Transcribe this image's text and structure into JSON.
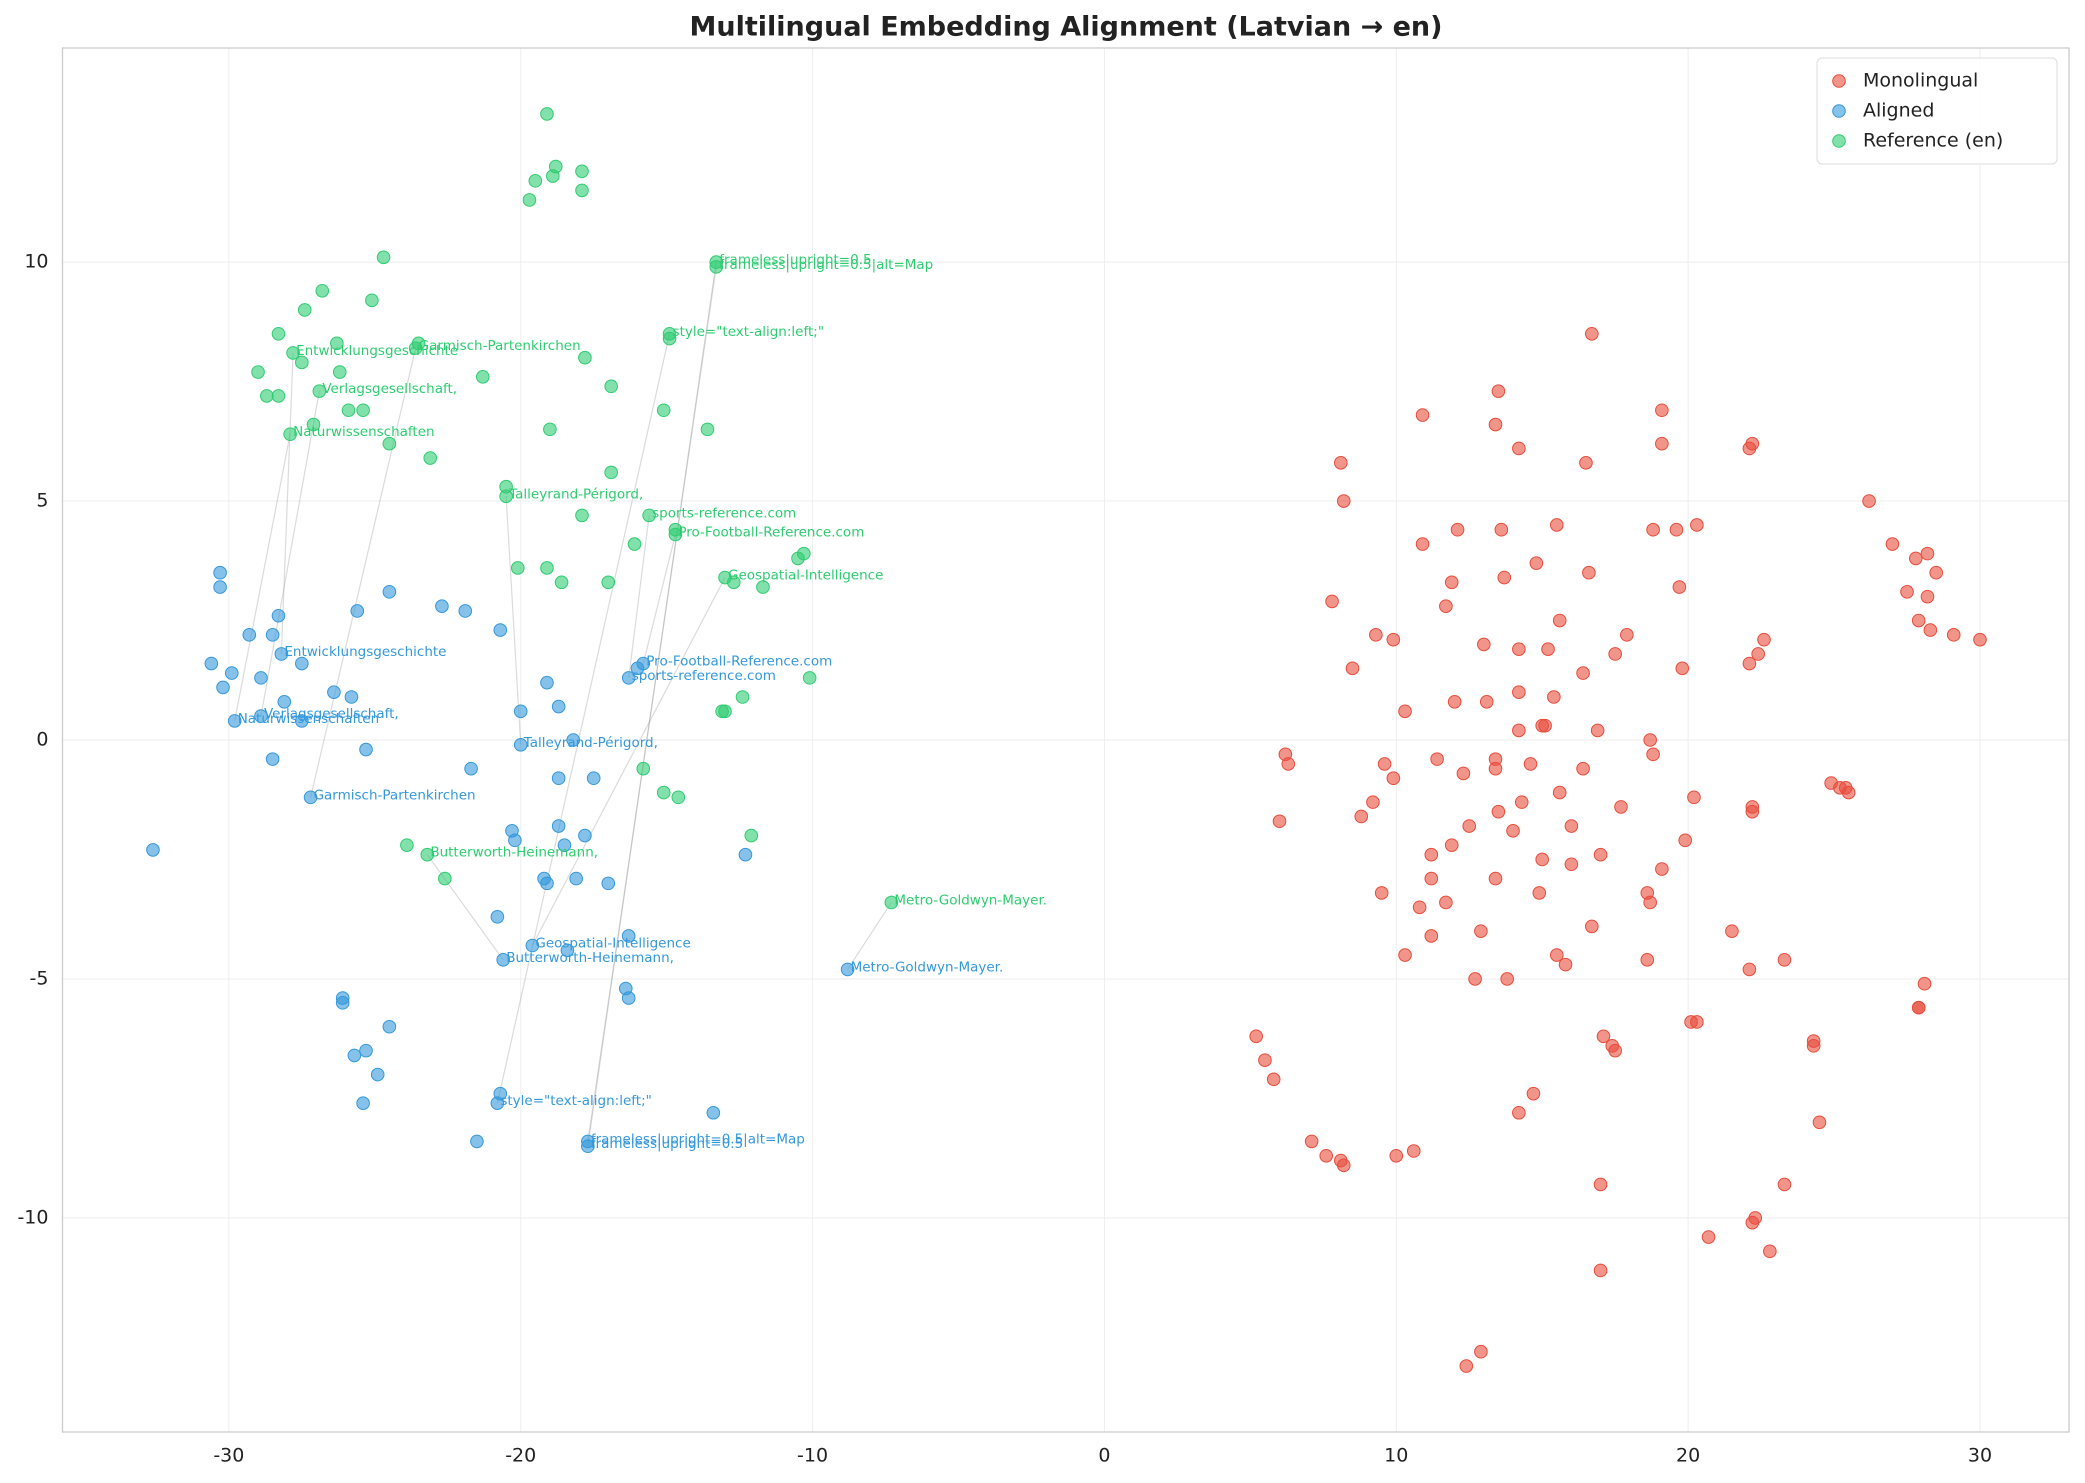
{
  "chart_data": {
    "type": "scatter",
    "title": "Multilingual Embedding Alignment (Latvian → en)",
    "xlim": [
      -35.7,
      33.05
    ],
    "ylim": [
      -14.48,
      14.48
    ],
    "xticks": [
      -30,
      -20,
      -10,
      0,
      10,
      20,
      30
    ],
    "yticks": [
      -10,
      -5,
      0,
      5,
      10
    ],
    "grid": true,
    "legend": "upper right",
    "series": [
      {
        "name": "Monolingual",
        "color": "#e74c3c",
        "x": [
          16.7,
          13.5,
          19.1,
          10.9,
          13.4,
          14.2,
          19.1,
          22.2,
          22.1,
          8.1,
          16.5,
          8.2,
          26.2,
          10.9,
          12.1,
          13.6,
          15.5,
          18.8,
          19.6,
          20.3,
          27.0,
          27.8,
          28.2,
          28.5,
          14.8,
          16.6,
          11.9,
          13.7,
          19.7,
          27.5,
          28.2,
          7.8,
          11.7,
          15.6,
          9.3,
          9.9,
          17.9,
          22.6,
          27.9,
          28.3,
          29.1,
          30.0,
          13.0,
          14.2,
          15.2,
          17.5,
          22.4,
          22.1,
          19.8,
          8.5,
          16.4,
          12.0,
          13.1,
          14.2,
          15.4,
          10.3,
          15.0,
          15.1,
          14.2,
          16.9,
          18.7,
          18.8,
          6.2,
          6.3,
          9.6,
          11.4,
          13.4,
          14.6,
          16.4,
          9.9,
          12.3,
          13.4,
          24.9,
          25.2,
          25.4,
          25.5,
          15.6,
          14.3,
          9.2,
          20.2,
          22.2,
          22.2,
          17.7,
          6.0,
          13.5,
          8.8,
          16.0,
          12.5,
          14.0,
          19.9,
          11.9,
          11.2,
          17.0,
          15.0,
          16.0,
          19.1,
          11.2,
          13.4,
          9.5,
          14.9,
          18.6,
          18.7,
          10.8,
          11.7,
          12.9,
          16.7,
          11.2,
          21.5,
          10.3,
          15.5,
          15.8,
          18.6,
          22.1,
          23.3,
          12.7,
          13.8,
          28.1,
          27.9,
          27.9,
          20.1,
          20.3,
          5.2,
          17.1,
          17.4,
          17.5,
          24.3,
          24.3,
          5.5,
          5.8,
          14.7,
          14.2,
          24.5,
          7.1,
          7.6,
          8.1,
          8.2,
          10.0,
          10.6,
          17.0,
          23.3,
          22.3,
          22.2,
          20.7,
          22.8,
          17.0,
          12.9,
          12.4
        ],
        "values": [
          8.5,
          7.3,
          6.9,
          6.8,
          6.6,
          6.1,
          6.2,
          6.2,
          6.1,
          5.8,
          5.8,
          5.0,
          5.0,
          4.1,
          4.4,
          4.4,
          4.5,
          4.4,
          4.4,
          4.5,
          4.1,
          3.8,
          3.9,
          3.5,
          3.7,
          3.5,
          3.3,
          3.4,
          3.2,
          3.1,
          3.0,
          2.9,
          2.8,
          2.5,
          2.2,
          2.1,
          2.2,
          2.1,
          2.5,
          2.3,
          2.2,
          2.1,
          2.0,
          1.9,
          1.9,
          1.8,
          1.8,
          1.6,
          1.5,
          1.5,
          1.4,
          0.8,
          0.8,
          1.0,
          0.9,
          0.6,
          0.3,
          0.3,
          0.2,
          0.2,
          0.0,
          -0.3,
          -0.3,
          -0.5,
          -0.5,
          -0.4,
          -0.4,
          -0.5,
          -0.6,
          -0.8,
          -0.7,
          -0.6,
          -0.9,
          -1.0,
          -1.0,
          -1.1,
          -1.1,
          -1.3,
          -1.3,
          -1.2,
          -1.4,
          -1.5,
          -1.4,
          -1.7,
          -1.5,
          -1.6,
          -1.8,
          -1.8,
          -1.9,
          -2.1,
          -2.2,
          -2.4,
          -2.4,
          -2.5,
          -2.6,
          -2.7,
          -2.9,
          -2.9,
          -3.2,
          -3.2,
          -3.2,
          -3.4,
          -3.5,
          -3.4,
          -4.0,
          -3.9,
          -4.1,
          -4.0,
          -4.5,
          -4.5,
          -4.7,
          -4.6,
          -4.8,
          -4.6,
          -5.0,
          -5.0,
          -5.1,
          -5.6,
          -5.6,
          -5.9,
          -5.9,
          -6.2,
          -6.2,
          -6.4,
          -6.5,
          -6.3,
          -6.4,
          -6.7,
          -7.1,
          -7.4,
          -7.8,
          -8.0,
          -8.4,
          -8.7,
          -8.8,
          -8.9,
          -8.7,
          -8.6,
          -9.3,
          -9.3,
          -10.0,
          -10.1,
          -10.4,
          -10.7,
          -11.1,
          -12.8,
          -13.1
        ]
      },
      {
        "name": "Aligned",
        "color": "#3498db",
        "x": [
          -30.3,
          -30.3,
          -24.5,
          -25.6,
          -22.7,
          -21.9,
          -28.3,
          -29.3,
          -28.5,
          -20.7,
          -28.2,
          -30.6,
          -27.5,
          -29.9,
          -28.9,
          -30.2,
          -19.1,
          -15.8,
          -16.0,
          -16.3,
          -26.4,
          -25.8,
          -28.1,
          -18.7,
          -20.0,
          -28.9,
          -27.5,
          -29.8,
          -20.0,
          -18.2,
          -25.3,
          -28.5,
          -21.7,
          -17.5,
          -18.7,
          -27.2,
          -20.3,
          -18.7,
          -20.2,
          -17.8,
          -18.5,
          -32.6,
          -12.3,
          -19.2,
          -19.1,
          -18.1,
          -17.0,
          -20.8,
          -16.3,
          -18.4,
          -19.6,
          -20.6,
          -8.8,
          -16.4,
          -16.3,
          -26.1,
          -26.1,
          -24.5,
          -25.3,
          -25.7,
          -24.9,
          -20.7,
          -20.8,
          -25.4,
          -13.4,
          -21.5,
          -17.7,
          -17.7
        ],
        "values": [
          3.5,
          3.2,
          3.1,
          2.7,
          2.8,
          2.7,
          2.6,
          2.2,
          2.2,
          2.3,
          1.8,
          1.6,
          1.6,
          1.4,
          1.3,
          1.1,
          1.2,
          1.6,
          1.5,
          1.3,
          1.0,
          0.9,
          0.8,
          0.7,
          0.6,
          0.5,
          0.4,
          0.4,
          -0.1,
          0.0,
          -0.2,
          -0.4,
          -0.6,
          -0.8,
          -0.8,
          -1.2,
          -1.9,
          -1.8,
          -2.1,
          -2.0,
          -2.2,
          -2.3,
          -2.4,
          -2.9,
          -3.0,
          -2.9,
          -3.0,
          -3.7,
          -4.1,
          -4.4,
          -4.3,
          -4.6,
          -4.8,
          -5.2,
          -5.4,
          -5.4,
          -5.5,
          -6.0,
          -6.5,
          -6.6,
          -7.0,
          -7.4,
          -7.6,
          -7.6,
          -7.8,
          -8.4,
          -8.4,
          -8.5
        ]
      },
      {
        "name": "Reference (en)",
        "color": "#2ecc71",
        "x": [
          -19.1,
          -18.8,
          -17.9,
          -19.5,
          -18.9,
          -17.9,
          -19.7,
          -24.7,
          -13.3,
          -13.3,
          -26.8,
          -25.1,
          -27.4,
          -28.3,
          -14.9,
          -14.9,
          -26.3,
          -23.5,
          -23.6,
          -17.8,
          -27.8,
          -27.5,
          -29.0,
          -26.2,
          -21.3,
          -16.9,
          -26.9,
          -28.3,
          -28.7,
          -25.9,
          -25.4,
          -15.1,
          -27.1,
          -19.0,
          -13.6,
          -27.9,
          -24.5,
          -23.1,
          -16.9,
          -20.5,
          -20.5,
          -17.9,
          -15.6,
          -14.7,
          -14.7,
          -16.1,
          -10.3,
          -10.5,
          -20.1,
          -19.1,
          -13.0,
          -12.7,
          -11.7,
          -18.6,
          -17.0,
          -10.1,
          -12.4,
          -13.0,
          -13.1,
          -15.8,
          -15.1,
          -14.6,
          -12.1,
          -23.9,
          -23.2,
          -22.6,
          -7.3
        ],
        "values": [
          13.1,
          12.0,
          11.9,
          11.7,
          11.8,
          11.5,
          11.3,
          10.1,
          10.0,
          9.9,
          9.4,
          9.2,
          9.0,
          8.5,
          8.5,
          8.4,
          8.3,
          8.3,
          8.2,
          8.0,
          8.1,
          7.9,
          7.7,
          7.7,
          7.6,
          7.4,
          7.3,
          7.2,
          7.2,
          6.9,
          6.9,
          6.9,
          6.6,
          6.5,
          6.5,
          6.4,
          6.2,
          5.9,
          5.6,
          5.3,
          5.1,
          4.7,
          4.7,
          4.4,
          4.3,
          4.1,
          3.9,
          3.8,
          3.6,
          3.6,
          3.4,
          3.3,
          3.2,
          3.3,
          3.3,
          1.3,
          0.9,
          0.6,
          0.6,
          -0.6,
          -1.1,
          -1.2,
          -2.0,
          -2.2,
          -2.4,
          -2.9,
          -3.4
        ]
      }
    ],
    "annotations": [
      {
        "text": "frameless|upright=0.5",
        "aligned": [
          -17.7,
          -8.5
        ],
        "reference": [
          -13.3,
          10.0
        ]
      },
      {
        "text": "frameless|upright=0.5|alt=Map",
        "aligned": [
          -17.7,
          -8.4
        ],
        "reference": [
          -13.3,
          9.9
        ]
      },
      {
        "text": "style=\"text-align:left;\"",
        "aligned": [
          -20.8,
          -7.6
        ],
        "reference": [
          -14.9,
          8.5
        ]
      },
      {
        "text": "Garmisch-Partenkirchen",
        "aligned": [
          -27.2,
          -1.2
        ],
        "reference": [
          -23.6,
          8.2
        ]
      },
      {
        "text": "Entwicklungsgeschichte",
        "aligned": [
          -28.2,
          1.8
        ],
        "reference": [
          -27.8,
          8.1
        ]
      },
      {
        "text": "Verlagsgesellschaft,",
        "aligned": [
          -28.9,
          0.5
        ],
        "reference": [
          -26.9,
          7.3
        ]
      },
      {
        "text": "Naturwissenschaften",
        "aligned": [
          -29.8,
          0.4
        ],
        "reference": [
          -27.9,
          6.4
        ]
      },
      {
        "text": "Talleyrand-Périgord,",
        "aligned": [
          -20.0,
          -0.1
        ],
        "reference": [
          -20.5,
          5.1
        ]
      },
      {
        "text": "sports-reference.com",
        "aligned": [
          -16.3,
          1.3
        ],
        "reference": [
          -15.6,
          4.7
        ]
      },
      {
        "text": "Pro-Football-Reference.com",
        "aligned": [
          -15.8,
          1.6
        ],
        "reference": [
          -14.7,
          4.3
        ]
      },
      {
        "text": "Geospatial-Intelligence",
        "aligned": [
          -19.6,
          -4.3
        ],
        "reference": [
          -13.0,
          3.4
        ]
      },
      {
        "text": "Butterworth-Heinemann,",
        "aligned": [
          -20.6,
          -4.6
        ],
        "reference": [
          -23.2,
          -2.4
        ]
      },
      {
        "text": "Metro-Goldwyn-Mayer.",
        "aligned": [
          -8.8,
          -4.8
        ],
        "reference": [
          -7.3,
          -3.4
        ]
      }
    ]
  }
}
